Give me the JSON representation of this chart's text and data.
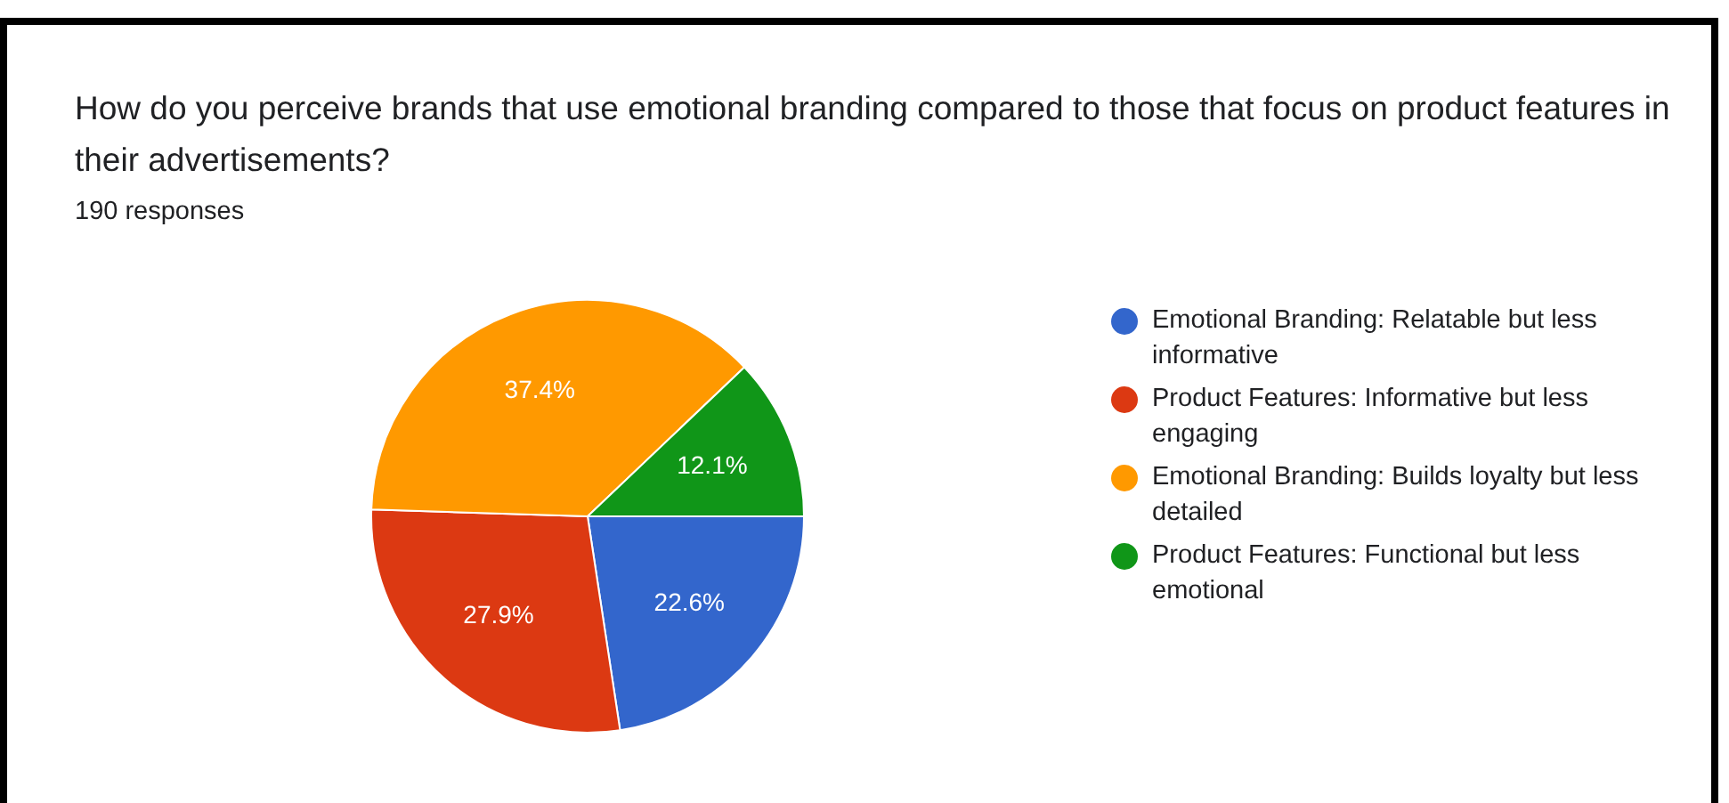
{
  "chart_data": {
    "type": "pie",
    "title": "How do you perceive brands that use emotional branding compared to those that focus on product features in their advertisements?",
    "subtitle": "190 responses",
    "categories": [
      "Emotional Branding: Relatable but less informative",
      "Product Features: Informative but less engaging",
      "Emotional Branding: Builds loyalty but less detailed",
      "Product Features: Functional but less emotional"
    ],
    "values": [
      22.6,
      27.9,
      37.4,
      12.1
    ],
    "colors": [
      "#3366cc",
      "#dc3912",
      "#ff9900",
      "#109618"
    ],
    "value_labels": [
      "22.6%",
      "27.9%",
      "37.4%",
      "12.1%"
    ],
    "legend": "right"
  }
}
